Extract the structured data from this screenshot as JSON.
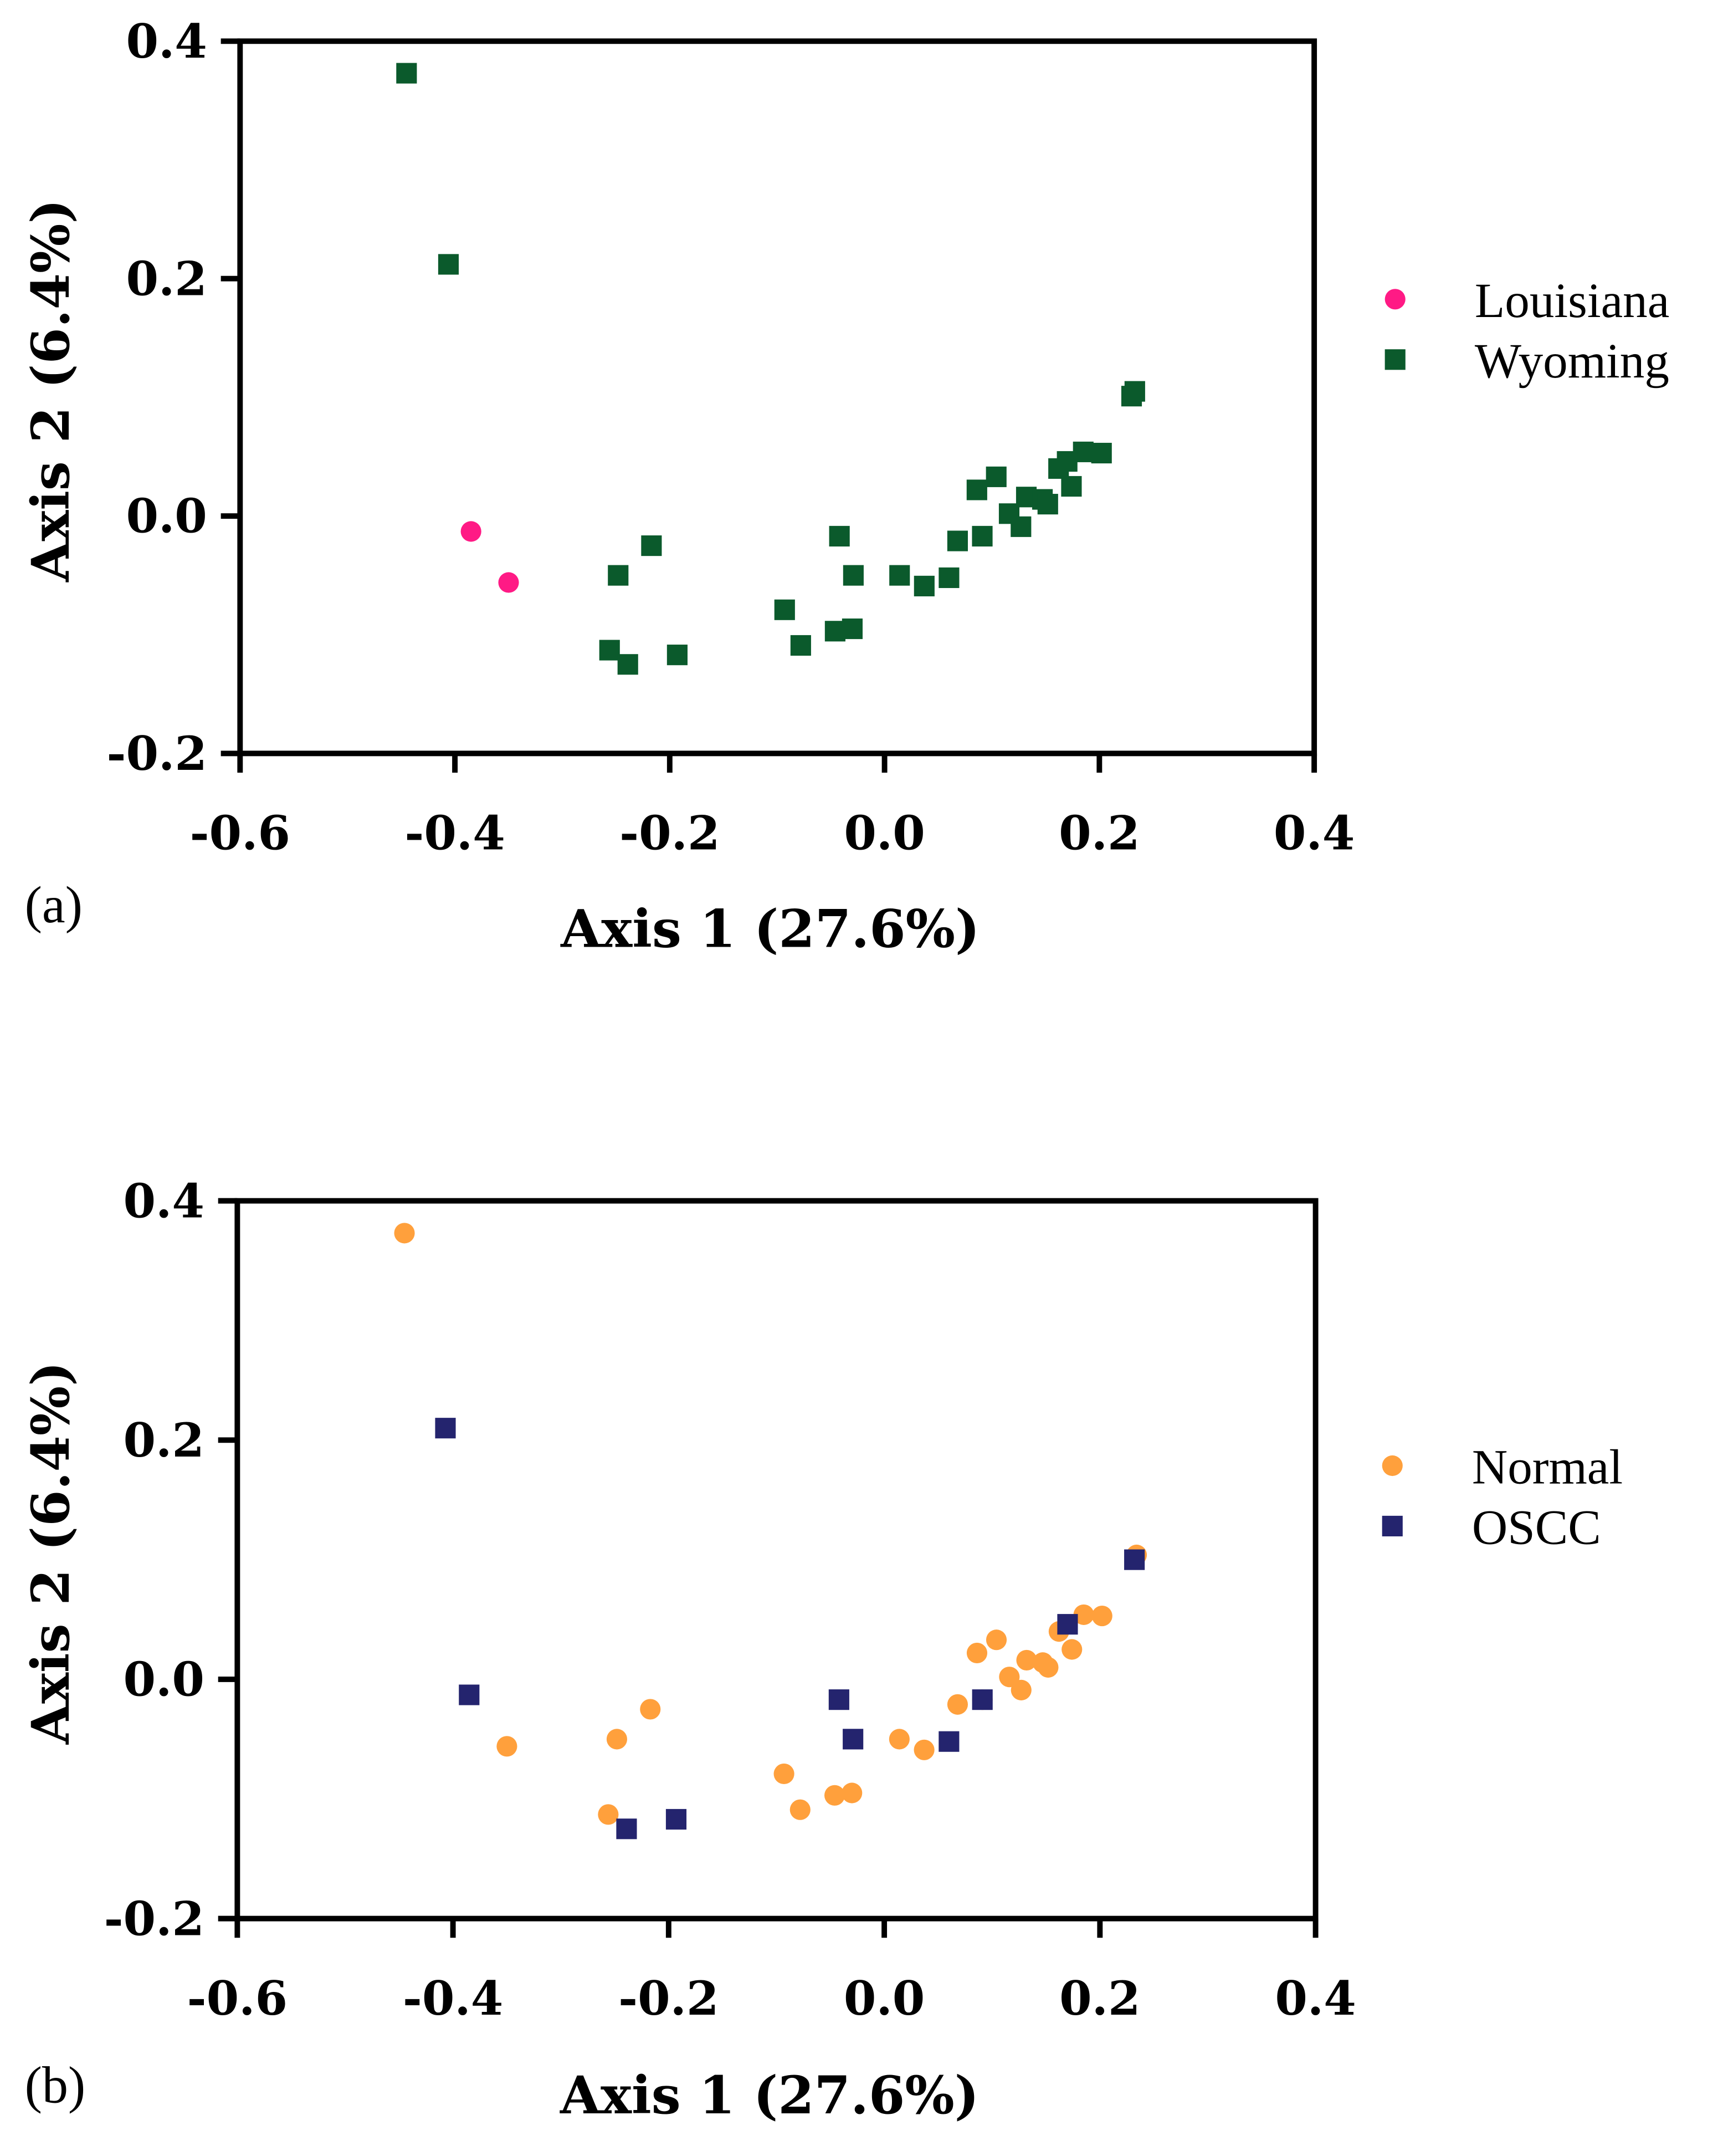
{
  "chart_data": [
    {
      "type": "scatter",
      "panel_label": "(a)",
      "xlabel": "Axis 1 (27.6%)",
      "ylabel": "Axis 2 (6.4%)",
      "xlim": [
        -0.6,
        0.4
      ],
      "ylim": [
        -0.2,
        0.4
      ],
      "xticks": [
        "-0.6",
        "-0.4",
        "-0.2",
        "0.0",
        "0.2",
        "0.4"
      ],
      "yticks": [
        "-0.2",
        "0.0",
        "0.2",
        "0.4"
      ],
      "legend_position": "right",
      "series": [
        {
          "name": "Louisiana",
          "marker": "circle",
          "color": "#ff1a85",
          "points": [
            [
              -0.385,
              -0.013
            ],
            [
              -0.35,
              -0.056
            ]
          ]
        },
        {
          "name": "Wyoming",
          "marker": "square",
          "color": "#0b5a2c",
          "points": [
            [
              -0.445,
              0.373
            ],
            [
              -0.406,
              0.212
            ],
            [
              -0.248,
              -0.05
            ],
            [
              -0.217,
              -0.025
            ],
            [
              -0.256,
              -0.113
            ],
            [
              -0.239,
              -0.125
            ],
            [
              -0.193,
              -0.117
            ],
            [
              -0.093,
              -0.079
            ],
            [
              -0.078,
              -0.109
            ],
            [
              -0.042,
              -0.017
            ],
            [
              -0.046,
              -0.097
            ],
            [
              -0.03,
              -0.095
            ],
            [
              -0.029,
              -0.05
            ],
            [
              0.014,
              -0.05
            ],
            [
              0.037,
              -0.059
            ],
            [
              0.06,
              -0.052
            ],
            [
              0.068,
              -0.021
            ],
            [
              0.086,
              0.022
            ],
            [
              0.091,
              -0.017
            ],
            [
              0.104,
              0.033
            ],
            [
              0.116,
              0.002
            ],
            [
              0.127,
              -0.009
            ],
            [
              0.132,
              0.016
            ],
            [
              0.147,
              0.014
            ],
            [
              0.152,
              0.01
            ],
            [
              0.162,
              0.04
            ],
            [
              0.17,
              0.046
            ],
            [
              0.174,
              0.025
            ],
            [
              0.185,
              0.054
            ],
            [
              0.202,
              0.053
            ],
            [
              0.23,
              0.101
            ],
            [
              0.233,
              0.105
            ]
          ]
        }
      ]
    },
    {
      "type": "scatter",
      "panel_label": "(b)",
      "xlabel": "Axis 1 (27.6%)",
      "ylabel": "Axis 2 (6.4%)",
      "xlim": [
        -0.6,
        0.4
      ],
      "ylim": [
        -0.2,
        0.4
      ],
      "xticks": [
        "-0.6",
        "-0.4",
        "-0.2",
        "0.0",
        "0.2",
        "0.4"
      ],
      "yticks": [
        "-0.2",
        "0.0",
        "0.2",
        "0.4"
      ],
      "legend_position": "right",
      "series": [
        {
          "name": "Normal",
          "marker": "circle",
          "color": "#ffa03c",
          "points": [
            [
              -0.445,
              0.373
            ],
            [
              -0.35,
              -0.056
            ],
            [
              -0.248,
              -0.05
            ],
            [
              -0.217,
              -0.025
            ],
            [
              -0.256,
              -0.113
            ],
            [
              -0.093,
              -0.079
            ],
            [
              -0.078,
              -0.109
            ],
            [
              -0.046,
              -0.097
            ],
            [
              -0.03,
              -0.095
            ],
            [
              0.014,
              -0.05
            ],
            [
              0.037,
              -0.059
            ],
            [
              0.068,
              -0.021
            ],
            [
              0.086,
              0.022
            ],
            [
              0.091,
              -0.017
            ],
            [
              0.104,
              0.033
            ],
            [
              0.116,
              0.002
            ],
            [
              0.127,
              -0.009
            ],
            [
              0.132,
              0.016
            ],
            [
              0.147,
              0.014
            ],
            [
              0.152,
              0.01
            ],
            [
              0.162,
              0.04
            ],
            [
              0.174,
              0.025
            ],
            [
              0.185,
              0.054
            ],
            [
              0.202,
              0.053
            ],
            [
              0.234,
              0.104
            ]
          ]
        },
        {
          "name": "OSCC",
          "marker": "square",
          "color": "#24246e",
          "points": [
            [
              -0.407,
              0.21
            ],
            [
              -0.385,
              -0.013
            ],
            [
              -0.239,
              -0.125
            ],
            [
              -0.193,
              -0.117
            ],
            [
              -0.042,
              -0.017
            ],
            [
              -0.029,
              -0.05
            ],
            [
              0.06,
              -0.052
            ],
            [
              0.091,
              -0.017
            ],
            [
              0.17,
              0.046
            ],
            [
              0.232,
              0.1
            ]
          ]
        }
      ]
    }
  ]
}
